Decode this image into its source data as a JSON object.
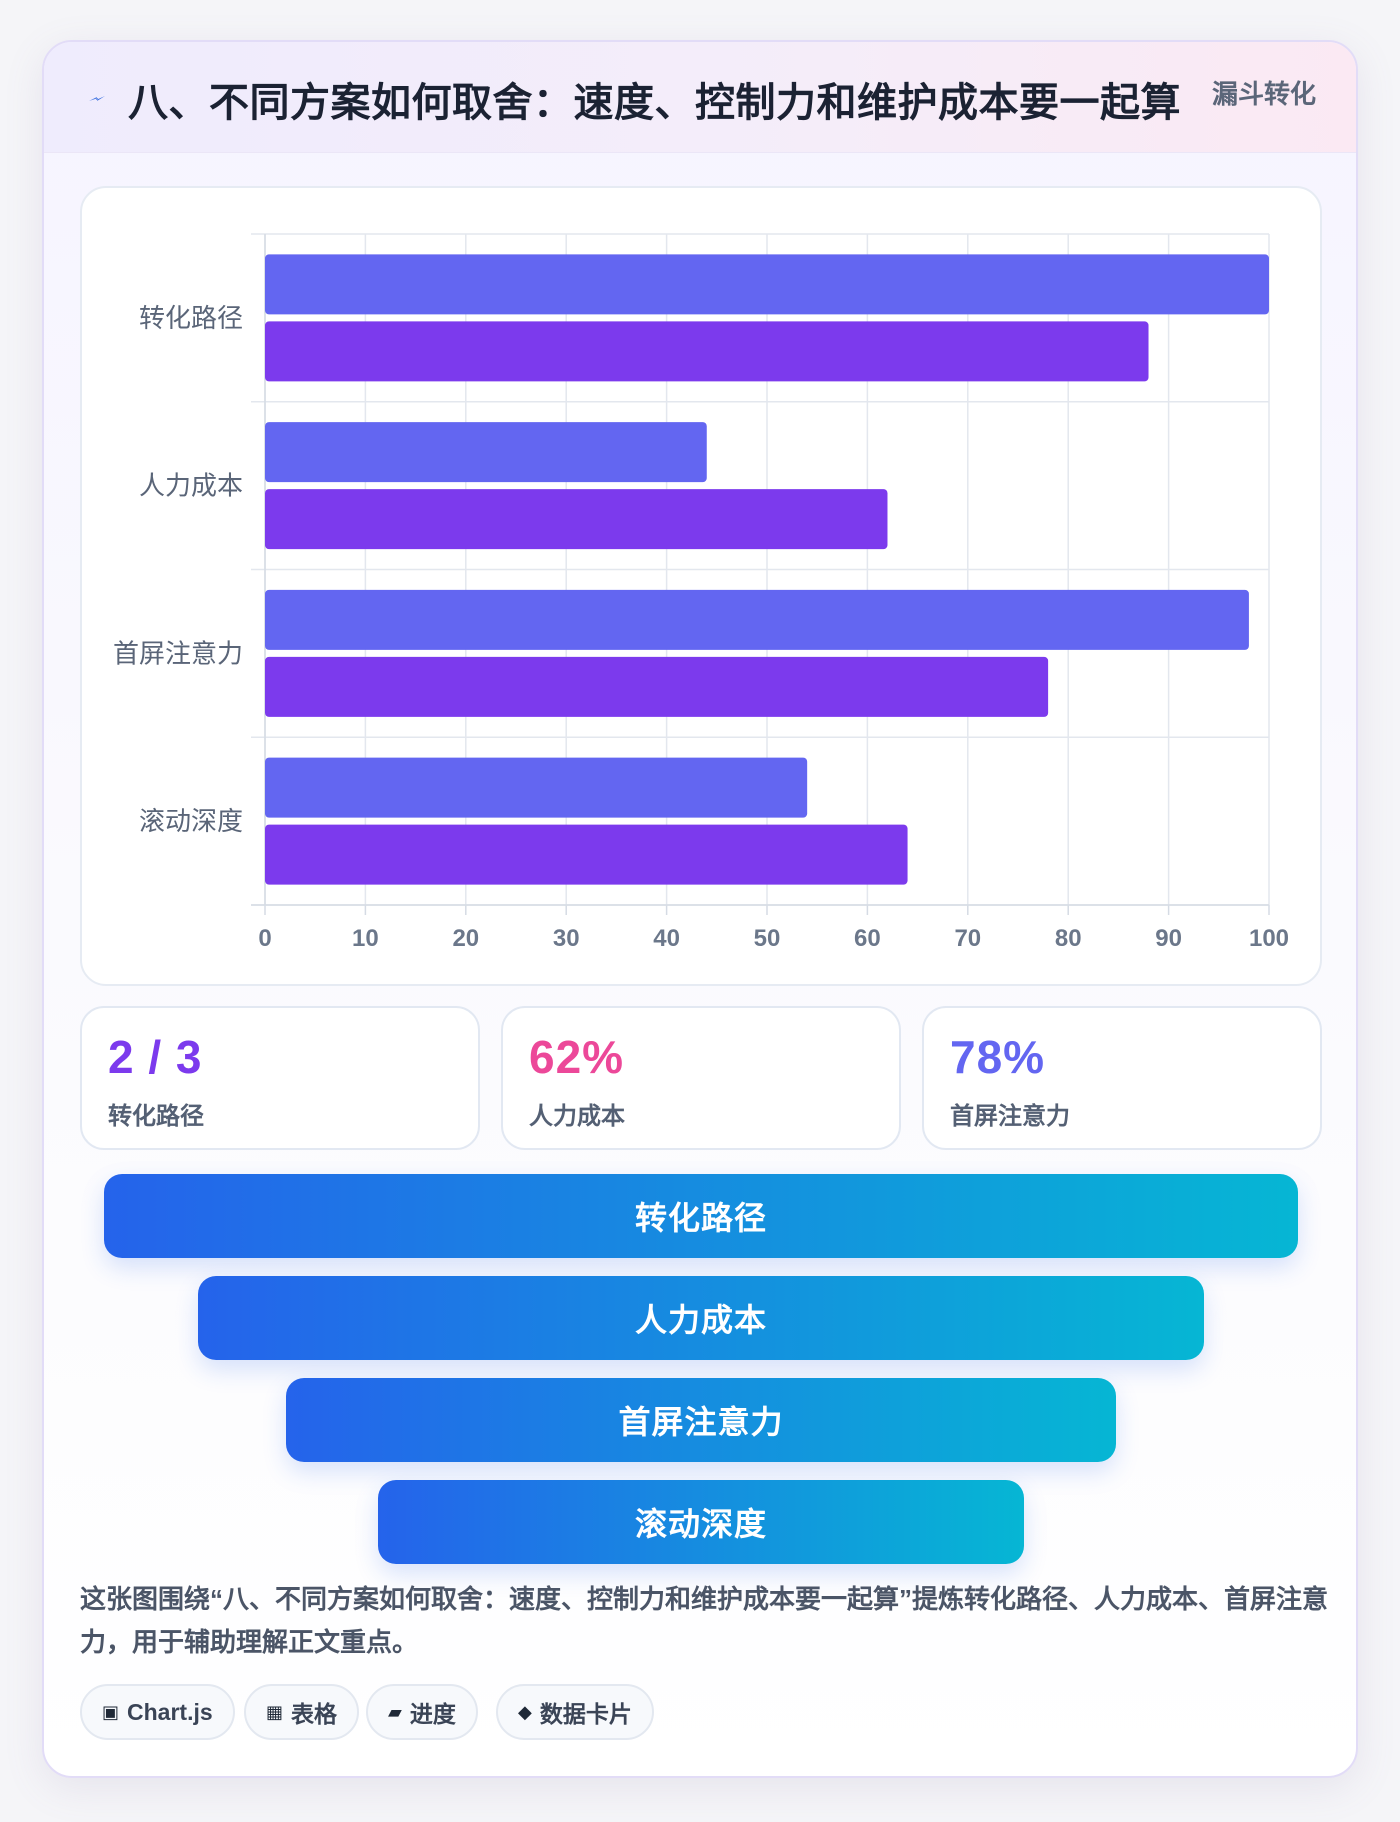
{
  "header": {
    "title": "八、不同方案如何取舍：速度、控制力和维护成本要一起算",
    "tag": "漏斗转化",
    "icon": "lightning-bolt-icon"
  },
  "chart_data": {
    "type": "bar",
    "orientation": "horizontal",
    "categories": [
      "转化路径",
      "人力成本",
      "首屏注意力",
      "滚动深度"
    ],
    "series": [
      {
        "values": [
          100,
          44,
          98,
          54
        ],
        "color": "#6366f1"
      },
      {
        "values": [
          88,
          62,
          78,
          64
        ],
        "color": "#7c3aed"
      }
    ],
    "xlim": [
      0,
      100
    ],
    "x_ticks": [
      "0",
      "10",
      "20",
      "30",
      "40",
      "50",
      "60",
      "70",
      "80",
      "90",
      "100"
    ],
    "grid": true,
    "legend": "none"
  },
  "stats": [
    {
      "value": "2 / 3",
      "label": "转化路径",
      "color": "#7c3aed"
    },
    {
      "value": "62%",
      "label": "人力成本",
      "color": "#ec4899"
    },
    {
      "value": "78%",
      "label": "首屏注意力",
      "color": "#6366f1"
    }
  ],
  "funnel": [
    "转化路径",
    "人力成本",
    "首屏注意力",
    "滚动深度"
  ],
  "description": "这张图围绕“八、不同方案如何取舍：速度、控制力和维护成本要一起算”提炼转化路径、人力成本、首屏注意力，用于辅助理解正文重点。",
  "chips": [
    {
      "icon": "▣",
      "label": "Chart.js"
    },
    {
      "icon": "▦",
      "label": "表格"
    },
    {
      "icon": "▰",
      "label": "进度"
    },
    {
      "icon": "◆",
      "label": "数据卡片"
    }
  ]
}
